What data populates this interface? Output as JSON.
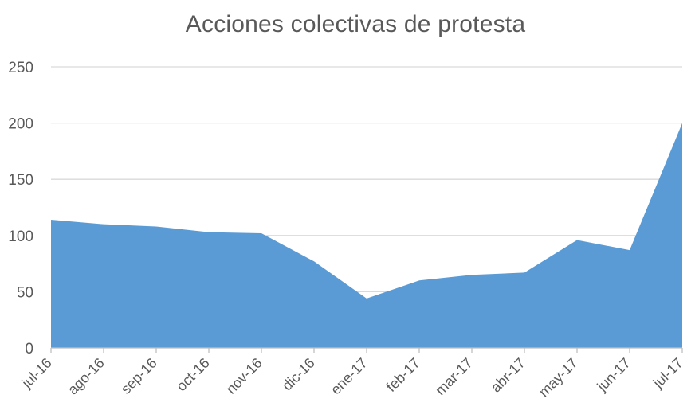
{
  "chart_data": {
    "type": "area",
    "title": "Acciones colectivas de protesta",
    "xlabel": "",
    "ylabel": "",
    "categories": [
      "jul-16",
      "ago-16",
      "sep-16",
      "oct-16",
      "nov-16",
      "dic-16",
      "ene-17",
      "feb-17",
      "mar-17",
      "abr-17",
      "may-17",
      "jun-17",
      "jul-17"
    ],
    "series": [
      {
        "values": [
          114,
          110,
          108,
          103,
          102,
          77,
          44,
          60,
          65,
          67,
          96,
          87,
          200
        ]
      }
    ],
    "ylim": [
      0,
      250
    ],
    "yticks": [
      0,
      50,
      100,
      150,
      200,
      250
    ],
    "grid": true,
    "legend": "none",
    "colors": {
      "area": "#5b9bd5",
      "grid": "#d9d9d9",
      "axis": "#bfbfbf",
      "text": "#595959"
    }
  }
}
